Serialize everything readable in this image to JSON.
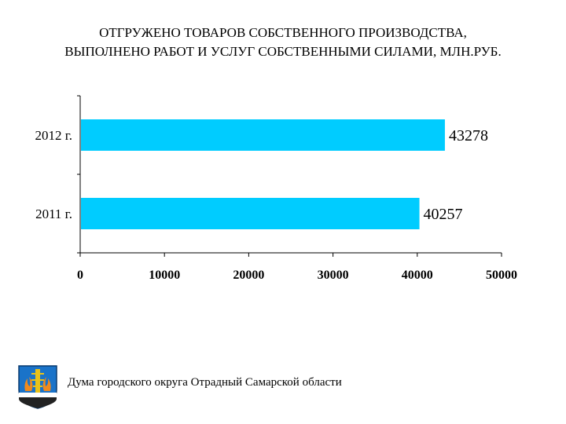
{
  "title": {
    "line1": "ОТГРУЖЕНО ТОВАРОВ СОБСТВЕННОГО ПРОИЗВОДСТВА,",
    "line2": "ВЫПОЛНЕНО РАБОТ И УСЛУГ СОБСТВЕННЫМИ СИЛАМИ, МЛН.РУБ."
  },
  "chart_data": {
    "type": "bar",
    "orientation": "horizontal",
    "categories": [
      "2012 г.",
      "2011 г."
    ],
    "values": [
      43278,
      40257
    ],
    "data_labels": [
      "43278",
      "40257"
    ],
    "xlim": [
      0,
      50000
    ],
    "x_ticks": [
      0,
      10000,
      20000,
      30000,
      40000,
      50000
    ],
    "x_tick_labels": [
      "0",
      "10000",
      "20000",
      "30000",
      "40000",
      "50000"
    ],
    "xlabel": "",
    "ylabel": "",
    "grid": false,
    "legend": "none",
    "bar_color": "#00ccff"
  },
  "footer": {
    "text": "Дума городского округа Отрадный Самарской области",
    "emblem_icon": "city-coat-of-arms-icon"
  }
}
